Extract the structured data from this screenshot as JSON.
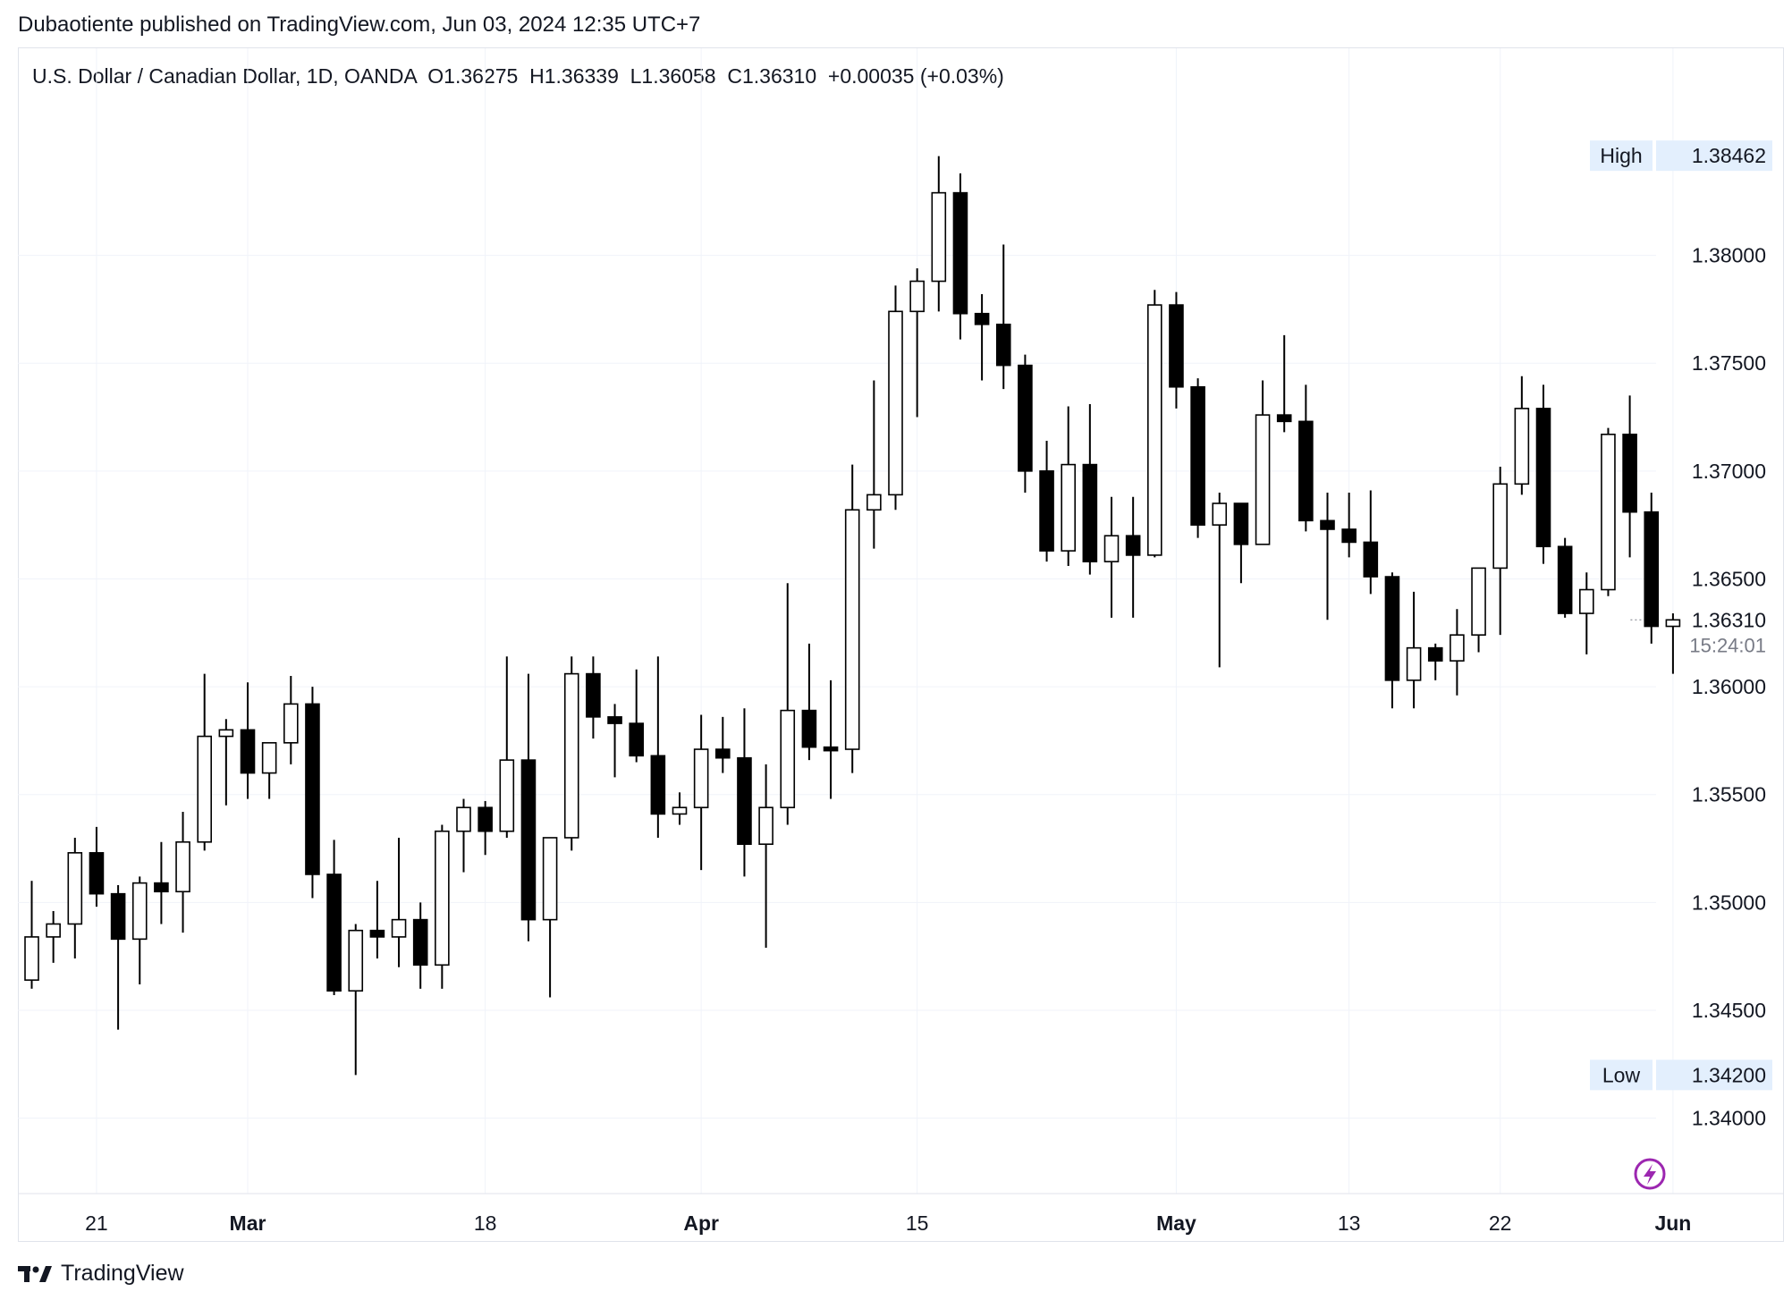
{
  "publisher_line": "Dubaotiente published on TradingView.com, Jun 03, 2024 12:35 UTC+7",
  "header": {
    "symbol": "U.S. Dollar / Canadian Dollar, 1D, OANDA",
    "open": "O1.36275",
    "high": "H1.36339",
    "low": "L1.36058",
    "close": "C1.36310",
    "change": "+0.00035 (+0.03%)"
  },
  "brand": "TradingView",
  "colors": {
    "up_body": "#ffffff",
    "down_body": "#000000",
    "wick": "#000000",
    "grid": "#f0f3fa",
    "tag_bg": "#e3effd"
  },
  "chart_data": {
    "type": "candlestick",
    "ylim": [
      1.3365,
      1.3896
    ],
    "y_ticks": [
      "1.34000",
      "1.34500",
      "1.35000",
      "1.35500",
      "1.36000",
      "1.36500",
      "1.37000",
      "1.37500",
      "1.38000"
    ],
    "y_tick_values": [
      1.34,
      1.345,
      1.35,
      1.355,
      1.36,
      1.365,
      1.37,
      1.375,
      1.38
    ],
    "x_tick_labels": [
      {
        "label": "21",
        "bar": 3,
        "bold": false
      },
      {
        "label": "Mar",
        "bar": 10,
        "bold": true
      },
      {
        "label": "18",
        "bar": 21,
        "bold": false
      },
      {
        "label": "Apr",
        "bar": 31,
        "bold": true
      },
      {
        "label": "15",
        "bar": 41,
        "bold": false
      },
      {
        "label": "May",
        "bar": 53,
        "bold": true
      },
      {
        "label": "13",
        "bar": 61,
        "bold": false
      },
      {
        "label": "22",
        "bar": 68,
        "bold": false
      },
      {
        "label": "Jun",
        "bar": 76,
        "bold": true
      }
    ],
    "high_tag": {
      "label": "High",
      "value": "1.38462"
    },
    "low_tag": {
      "label": "Low",
      "value": "1.34200"
    },
    "last_price": {
      "value": "1.36310",
      "countdown": "15:24:01"
    },
    "candles": [
      {
        "o": 1.3464,
        "h": 1.351,
        "l": 1.346,
        "c": 1.3484
      },
      {
        "o": 1.3484,
        "h": 1.3496,
        "l": 1.3472,
        "c": 1.349
      },
      {
        "o": 1.349,
        "h": 1.353,
        "l": 1.3474,
        "c": 1.3523
      },
      {
        "o": 1.3523,
        "h": 1.3535,
        "l": 1.3498,
        "c": 1.3504
      },
      {
        "o": 1.3504,
        "h": 1.3508,
        "l": 1.3441,
        "c": 1.3483
      },
      {
        "o": 1.3483,
        "h": 1.3512,
        "l": 1.3462,
        "c": 1.3509
      },
      {
        "o": 1.3509,
        "h": 1.3528,
        "l": 1.349,
        "c": 1.3505
      },
      {
        "o": 1.3505,
        "h": 1.3542,
        "l": 1.3486,
        "c": 1.3528
      },
      {
        "o": 1.3528,
        "h": 1.3606,
        "l": 1.3524,
        "c": 1.3577
      },
      {
        "o": 1.3577,
        "h": 1.3585,
        "l": 1.3545,
        "c": 1.358
      },
      {
        "o": 1.358,
        "h": 1.3602,
        "l": 1.3548,
        "c": 1.356
      },
      {
        "o": 1.356,
        "h": 1.3574,
        "l": 1.3548,
        "c": 1.3574
      },
      {
        "o": 1.3574,
        "h": 1.3605,
        "l": 1.3564,
        "c": 1.3592
      },
      {
        "o": 1.3592,
        "h": 1.36,
        "l": 1.3502,
        "c": 1.3513
      },
      {
        "o": 1.3513,
        "h": 1.3529,
        "l": 1.3457,
        "c": 1.3459
      },
      {
        "o": 1.3459,
        "h": 1.349,
        "l": 1.342,
        "c": 1.3487
      },
      {
        "o": 1.3487,
        "h": 1.351,
        "l": 1.3474,
        "c": 1.3484
      },
      {
        "o": 1.3484,
        "h": 1.353,
        "l": 1.347,
        "c": 1.3492
      },
      {
        "o": 1.3492,
        "h": 1.35,
        "l": 1.346,
        "c": 1.3471
      },
      {
        "o": 1.3471,
        "h": 1.3536,
        "l": 1.346,
        "c": 1.3533
      },
      {
        "o": 1.3533,
        "h": 1.3548,
        "l": 1.3514,
        "c": 1.3544
      },
      {
        "o": 1.3544,
        "h": 1.3547,
        "l": 1.3522,
        "c": 1.3533
      },
      {
        "o": 1.3533,
        "h": 1.3614,
        "l": 1.353,
        "c": 1.3566
      },
      {
        "o": 1.3566,
        "h": 1.3606,
        "l": 1.3482,
        "c": 1.3492
      },
      {
        "o": 1.3492,
        "h": 1.353,
        "l": 1.3456,
        "c": 1.353
      },
      {
        "o": 1.353,
        "h": 1.3614,
        "l": 1.3524,
        "c": 1.3606
      },
      {
        "o": 1.3606,
        "h": 1.3614,
        "l": 1.3576,
        "c": 1.3586
      },
      {
        "o": 1.3586,
        "h": 1.3592,
        "l": 1.3558,
        "c": 1.3583
      },
      {
        "o": 1.3583,
        "h": 1.3608,
        "l": 1.3565,
        "c": 1.3568
      },
      {
        "o": 1.3568,
        "h": 1.3614,
        "l": 1.353,
        "c": 1.3541
      },
      {
        "o": 1.3541,
        "h": 1.3551,
        "l": 1.3536,
        "c": 1.3544
      },
      {
        "o": 1.3544,
        "h": 1.3587,
        "l": 1.3515,
        "c": 1.3571
      },
      {
        "o": 1.3571,
        "h": 1.3586,
        "l": 1.356,
        "c": 1.3567
      },
      {
        "o": 1.3567,
        "h": 1.359,
        "l": 1.3512,
        "c": 1.3527
      },
      {
        "o": 1.3527,
        "h": 1.3564,
        "l": 1.3479,
        "c": 1.3544
      },
      {
        "o": 1.3544,
        "h": 1.3648,
        "l": 1.3536,
        "c": 1.3589
      },
      {
        "o": 1.3589,
        "h": 1.362,
        "l": 1.3566,
        "c": 1.3572
      },
      {
        "o": 1.3572,
        "h": 1.3603,
        "l": 1.3548,
        "c": 1.3571
      },
      {
        "o": 1.3571,
        "h": 1.3703,
        "l": 1.356,
        "c": 1.3682
      },
      {
        "o": 1.3682,
        "h": 1.3742,
        "l": 1.3664,
        "c": 1.3689
      },
      {
        "o": 1.3689,
        "h": 1.3786,
        "l": 1.3682,
        "c": 1.3774
      },
      {
        "o": 1.3774,
        "h": 1.3794,
        "l": 1.3725,
        "c": 1.3788
      },
      {
        "o": 1.3788,
        "h": 1.3846,
        "l": 1.3774,
        "c": 1.3829
      },
      {
        "o": 1.3829,
        "h": 1.3838,
        "l": 1.3761,
        "c": 1.3773
      },
      {
        "o": 1.3773,
        "h": 1.3782,
        "l": 1.3742,
        "c": 1.3768
      },
      {
        "o": 1.3768,
        "h": 1.3805,
        "l": 1.3738,
        "c": 1.3749
      },
      {
        "o": 1.3749,
        "h": 1.3754,
        "l": 1.369,
        "c": 1.37
      },
      {
        "o": 1.37,
        "h": 1.3714,
        "l": 1.3658,
        "c": 1.3663
      },
      {
        "o": 1.3663,
        "h": 1.373,
        "l": 1.3656,
        "c": 1.3703
      },
      {
        "o": 1.3703,
        "h": 1.3731,
        "l": 1.3652,
        "c": 1.3658
      },
      {
        "o": 1.3658,
        "h": 1.3688,
        "l": 1.3632,
        "c": 1.367
      },
      {
        "o": 1.367,
        "h": 1.3688,
        "l": 1.3632,
        "c": 1.3661
      },
      {
        "o": 1.3661,
        "h": 1.3784,
        "l": 1.366,
        "c": 1.3777
      },
      {
        "o": 1.3777,
        "h": 1.3783,
        "l": 1.3729,
        "c": 1.3739
      },
      {
        "o": 1.3739,
        "h": 1.3743,
        "l": 1.3669,
        "c": 1.3675
      },
      {
        "o": 1.3675,
        "h": 1.369,
        "l": 1.3609,
        "c": 1.3685
      },
      {
        "o": 1.3685,
        "h": 1.3685,
        "l": 1.3648,
        "c": 1.3666
      },
      {
        "o": 1.3666,
        "h": 1.3742,
        "l": 1.3666,
        "c": 1.3726
      },
      {
        "o": 1.3726,
        "h": 1.3763,
        "l": 1.3718,
        "c": 1.3723
      },
      {
        "o": 1.3723,
        "h": 1.374,
        "l": 1.3672,
        "c": 1.3677
      },
      {
        "o": 1.3677,
        "h": 1.369,
        "l": 1.3631,
        "c": 1.3673
      },
      {
        "o": 1.3673,
        "h": 1.369,
        "l": 1.366,
        "c": 1.3667
      },
      {
        "o": 1.3667,
        "h": 1.3691,
        "l": 1.3643,
        "c": 1.3651
      },
      {
        "o": 1.3651,
        "h": 1.3653,
        "l": 1.359,
        "c": 1.3603
      },
      {
        "o": 1.3603,
        "h": 1.3644,
        "l": 1.359,
        "c": 1.3618
      },
      {
        "o": 1.3618,
        "h": 1.362,
        "l": 1.3603,
        "c": 1.3612
      },
      {
        "o": 1.3612,
        "h": 1.3636,
        "l": 1.3596,
        "c": 1.3624
      },
      {
        "o": 1.3624,
        "h": 1.3655,
        "l": 1.3616,
        "c": 1.3655
      },
      {
        "o": 1.3655,
        "h": 1.3702,
        "l": 1.3624,
        "c": 1.3694
      },
      {
        "o": 1.3694,
        "h": 1.3744,
        "l": 1.3689,
        "c": 1.3729
      },
      {
        "o": 1.3729,
        "h": 1.374,
        "l": 1.3657,
        "c": 1.3665
      },
      {
        "o": 1.3665,
        "h": 1.3669,
        "l": 1.3632,
        "c": 1.3634
      },
      {
        "o": 1.3634,
        "h": 1.3653,
        "l": 1.3615,
        "c": 1.3645
      },
      {
        "o": 1.3645,
        "h": 1.372,
        "l": 1.3642,
        "c": 1.3717
      },
      {
        "o": 1.3717,
        "h": 1.3735,
        "l": 1.366,
        "c": 1.3681
      },
      {
        "o": 1.3681,
        "h": 1.369,
        "l": 1.362,
        "c": 1.3628
      },
      {
        "o": 1.3628,
        "h": 1.3634,
        "l": 1.3606,
        "c": 1.3631
      }
    ]
  }
}
